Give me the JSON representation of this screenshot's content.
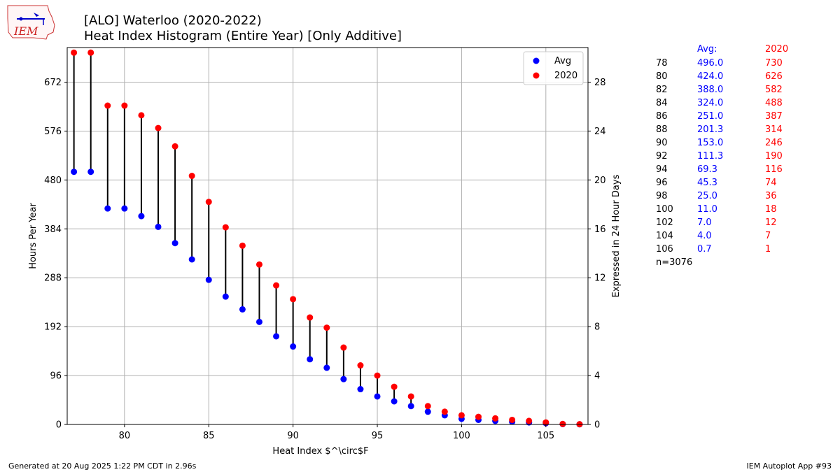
{
  "header": {
    "title_line1": "[ALO] Waterloo (2020-2022)",
    "title_line2": "Heat Index Histogram (Entire Year) [Only Additive]",
    "logo_text": "IEM"
  },
  "footer": {
    "left": "Generated at 20 Aug 2025 1:22 PM CDT in 2.96s",
    "right": "IEM Autoplot App #93"
  },
  "colors": {
    "avg": "#0000ff",
    "year": "#ff0000",
    "stem": "#000000",
    "grid": "#b0b0b0"
  },
  "chart_data": {
    "type": "scatter",
    "xlabel": "Heat Index $^\\circ$F",
    "ylabel": "Hours Per Year",
    "y2label": "Expressed in 24 Hour Days",
    "xlim": [
      76.6,
      107.5
    ],
    "ylim": [
      0,
      740
    ],
    "y2lim": [
      0,
      30.83
    ],
    "xticks": [
      80,
      85,
      90,
      95,
      100,
      105
    ],
    "yticks": [
      0,
      96,
      192,
      288,
      384,
      480,
      576,
      672
    ],
    "y2ticks": [
      0,
      4,
      8,
      12,
      16,
      20,
      24,
      28
    ],
    "grid": true,
    "legend_position": "top-right",
    "x": [
      77,
      78,
      79,
      80,
      81,
      82,
      83,
      84,
      85,
      86,
      87,
      88,
      89,
      90,
      91,
      92,
      93,
      94,
      95,
      96,
      97,
      98,
      99,
      100,
      101,
      102,
      103,
      104,
      105,
      106,
      107
    ],
    "series": [
      {
        "name": "Avg",
        "values": [
          496.0,
          496.0,
          424.0,
          424.0,
          409.0,
          388.0,
          356.0,
          324.0,
          284.0,
          251.0,
          226.0,
          201.3,
          173.0,
          153.0,
          128.0,
          111.3,
          89.0,
          69.3,
          55.0,
          45.3,
          36.0,
          25.0,
          18.0,
          11.0,
          9.0,
          7.0,
          5.3,
          4.0,
          2.5,
          0.7,
          0.3
        ]
      },
      {
        "name": "2020",
        "values": [
          730,
          730,
          626,
          626,
          607,
          582,
          546,
          488,
          437,
          387,
          351,
          314,
          273,
          246,
          210,
          190,
          151,
          116,
          96,
          74,
          55,
          36,
          25,
          18,
          15,
          12,
          9,
          7,
          4,
          1,
          0.5
        ]
      }
    ]
  },
  "stats_table": {
    "header_avg": "Avg:",
    "header_year": "2020",
    "rows": [
      {
        "t": "78",
        "avg": "496.0",
        "year": "730"
      },
      {
        "t": "80",
        "avg": "424.0",
        "year": "626"
      },
      {
        "t": "82",
        "avg": "388.0",
        "year": "582"
      },
      {
        "t": "84",
        "avg": "324.0",
        "year": "488"
      },
      {
        "t": "86",
        "avg": "251.0",
        "year": "387"
      },
      {
        "t": "88",
        "avg": "201.3",
        "year": "314"
      },
      {
        "t": "90",
        "avg": "153.0",
        "year": "246"
      },
      {
        "t": "92",
        "avg": "111.3",
        "year": "190"
      },
      {
        "t": "94",
        "avg": "69.3",
        "year": "116"
      },
      {
        "t": "96",
        "avg": "45.3",
        "year": "74"
      },
      {
        "t": "98",
        "avg": "25.0",
        "year": "36"
      },
      {
        "t": "100",
        "avg": "11.0",
        "year": "18"
      },
      {
        "t": "102",
        "avg": "7.0",
        "year": "12"
      },
      {
        "t": "104",
        "avg": "4.0",
        "year": "7"
      },
      {
        "t": "106",
        "avg": "0.7",
        "year": "1"
      }
    ],
    "count": "n=3076"
  }
}
